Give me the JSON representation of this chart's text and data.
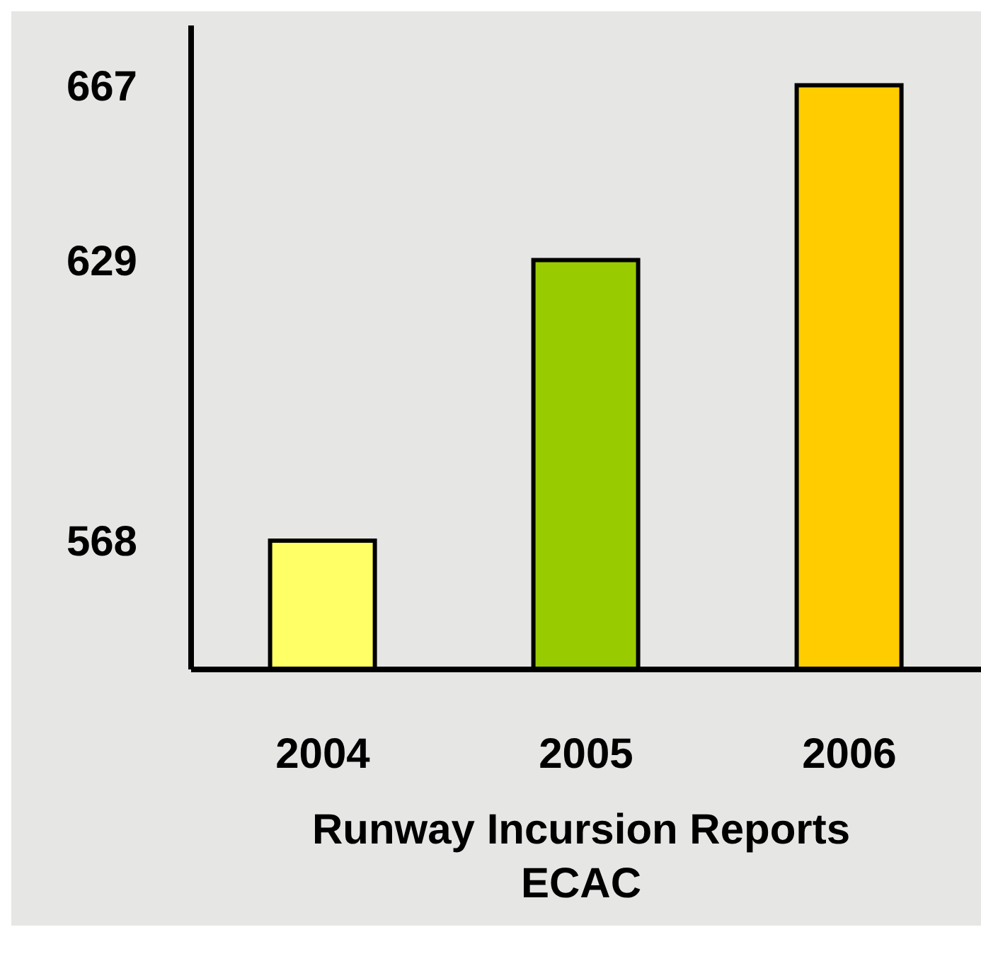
{
  "chart_data": {
    "type": "bar",
    "title": "Runway Incursion Reports",
    "subtitle": "ECAC",
    "categories": [
      "2004",
      "2005",
      "2006"
    ],
    "values": [
      568,
      629,
      667
    ],
    "colors": [
      "#ffff66",
      "#99cc00",
      "#ffcc00"
    ],
    "ylim": [
      540,
      680
    ],
    "yticks": [
      568,
      629,
      667
    ],
    "grid": false,
    "legend": false
  }
}
